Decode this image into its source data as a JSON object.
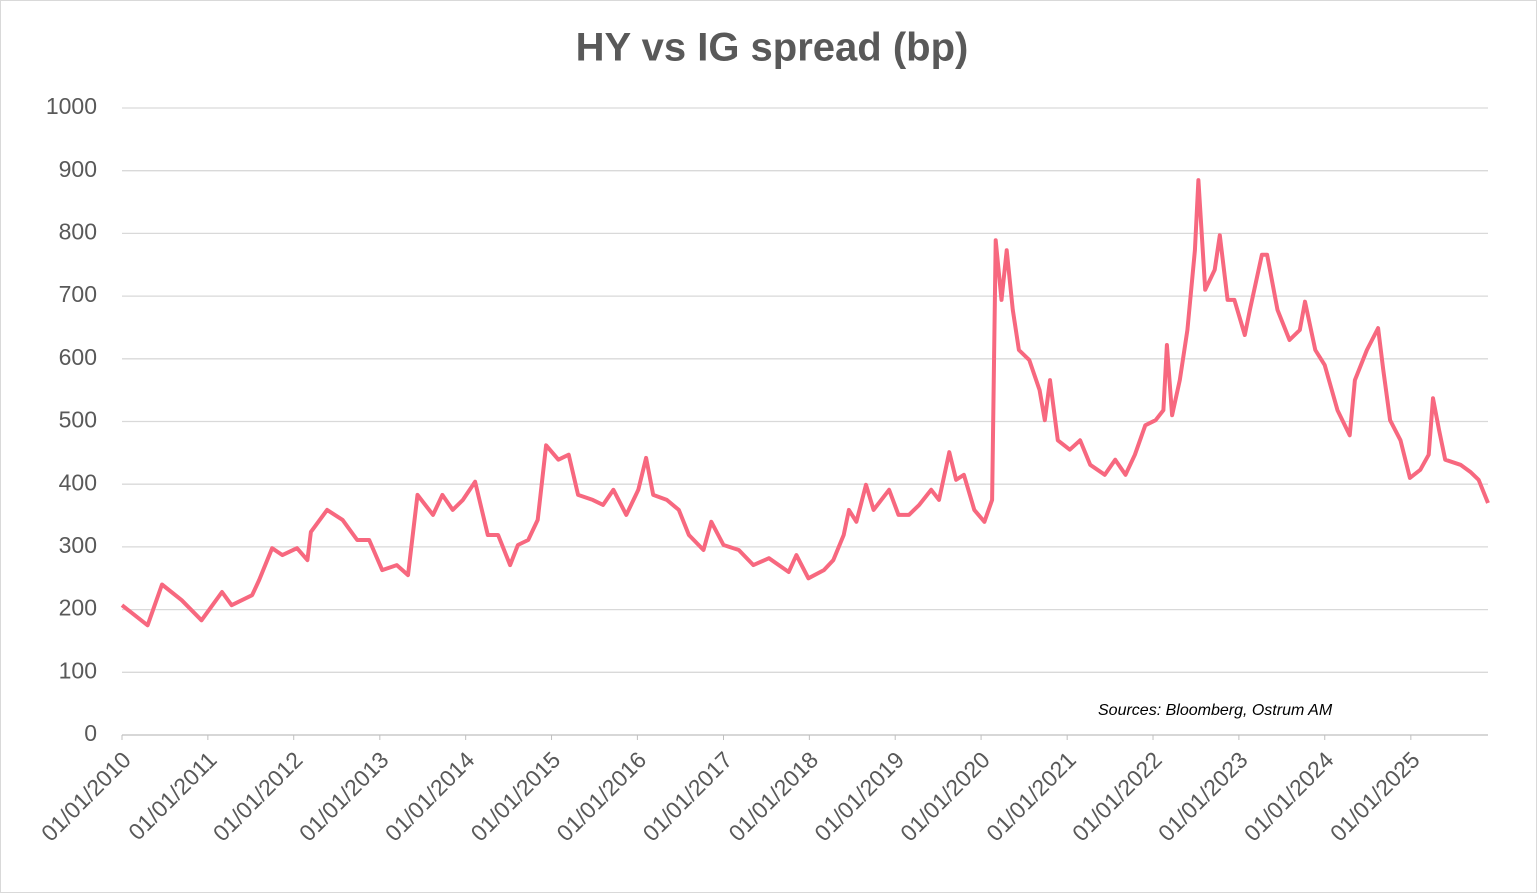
{
  "chart_data": {
    "type": "line",
    "title": "HY vs IG spread (bp)",
    "annotation": "Sources: Bloomberg, Ostrum AM",
    "color": "#f7687f",
    "grid": true,
    "x": [
      "2010-01-01",
      "2010-04-20",
      "2010-06-20",
      "2010-09-12",
      "2010-12-05",
      "2011-03-02",
      "2011-04-12",
      "2011-07-08",
      "2011-08-07",
      "2011-10-01",
      "2011-11-14",
      "2012-01-15",
      "2012-02-28",
      "2012-03-14",
      "2012-05-22",
      "2012-07-27",
      "2012-09-27",
      "2012-11-17",
      "2013-01-11",
      "2013-03-14",
      "2013-05-01",
      "2013-06-10",
      "2013-08-15",
      "2013-09-24",
      "2013-11-07",
      "2013-12-20",
      "2014-02-10",
      "2014-04-05",
      "2014-05-19",
      "2014-07-09",
      "2014-08-11",
      "2014-09-24",
      "2014-11-03",
      "2014-12-09",
      "2015-01-30",
      "2015-03-15",
      "2015-04-24",
      "2015-06-25",
      "2015-08-08",
      "2015-09-21",
      "2015-11-15",
      "2016-01-05",
      "2016-02-07",
      "2016-03-08",
      "2016-05-05",
      "2016-06-25",
      "2016-08-07",
      "2016-10-08",
      "2016-11-10",
      "2017-01-01",
      "2017-03-07",
      "2017-05-08",
      "2017-07-13",
      "2017-10-05",
      "2017-11-07",
      "2017-12-28",
      "2018-03-04",
      "2018-04-13",
      "2018-05-27",
      "2018-06-18",
      "2018-07-20",
      "2018-08-30",
      "2018-10-01",
      "2018-12-06",
      "2019-01-15",
      "2019-02-28",
      "2019-04-13",
      "2019-06-03",
      "2019-07-06",
      "2019-08-19",
      "2019-09-17",
      "2019-10-20",
      "2019-12-03",
      "2020-01-15",
      "2020-02-17",
      "2020-03-03",
      "2020-03-28",
      "2020-04-19",
      "2020-05-15",
      "2020-06-10",
      "2020-07-24",
      "2020-09-06",
      "2020-09-28",
      "2020-10-20",
      "2020-11-22",
      "2021-01-12",
      "2021-02-25",
      "2021-04-09",
      "2021-06-10",
      "2021-07-24",
      "2021-09-06",
      "2021-10-16",
      "2021-11-29",
      "2022-01-12",
      "2022-02-14",
      "2022-03-01",
      "2022-03-23",
      "2022-04-25",
      "2022-05-27",
      "2022-06-28",
      "2022-07-13",
      "2022-08-11",
      "2022-09-20",
      "2022-10-12",
      "2022-11-14",
      "2022-12-13",
      "2023-01-26",
      "2023-02-17",
      "2023-04-09",
      "2023-05-01",
      "2023-06-14",
      "2023-08-04",
      "2023-09-17",
      "2023-10-09",
      "2023-11-22",
      "2024-01-01",
      "2024-02-24",
      "2024-04-16",
      "2024-05-08",
      "2024-06-28",
      "2024-08-15",
      "2024-09-06",
      "2024-10-05",
      "2024-11-18",
      "2024-12-28",
      "2025-02-10",
      "2025-03-18",
      "2025-04-05",
      "2025-05-01",
      "2025-05-27",
      "2025-07-31",
      "2025-09-13",
      "2025-10-16",
      "2025-11-25"
    ],
    "values": [
      207,
      175,
      240,
      215,
      183,
      228,
      207,
      223,
      247,
      298,
      287,
      298,
      279,
      324,
      359,
      343,
      311,
      311,
      263,
      271,
      255,
      383,
      351,
      383,
      359,
      375,
      404,
      319,
      319,
      271,
      303,
      311,
      343,
      462,
      439,
      447,
      383,
      375,
      367,
      391,
      351,
      391,
      442,
      383,
      375,
      359,
      319,
      295,
      340,
      303,
      295,
      271,
      282,
      260,
      287,
      250,
      263,
      279,
      319,
      359,
      340,
      399,
      359,
      391,
      351,
      351,
      367,
      391,
      375,
      451,
      407,
      415,
      359,
      340,
      375,
      789,
      694,
      773,
      678,
      614,
      598,
      550,
      502,
      566,
      470,
      455,
      470,
      431,
      415,
      439,
      415,
      447,
      494,
      502,
      518,
      622,
      510,
      566,
      646,
      773,
      885,
      710,
      742,
      797,
      694,
      694,
      638,
      678,
      766,
      766,
      678,
      630,
      646,
      691,
      614,
      590,
      518,
      478,
      566,
      614,
      649,
      582,
      502,
      470,
      410,
      423,
      447,
      537,
      486,
      439,
      431,
      419,
      407,
      370
    ],
    "xlim": [
      "2010-01-01",
      "2025-11-25"
    ],
    "xticks": [
      {
        "value": "2010-01-01",
        "label": "01/01/2010"
      },
      {
        "value": "2011-01-01",
        "label": "01/01/2011"
      },
      {
        "value": "2012-01-01",
        "label": "01/01/2012"
      },
      {
        "value": "2013-01-01",
        "label": "01/01/2013"
      },
      {
        "value": "2014-01-01",
        "label": "01/01/2014"
      },
      {
        "value": "2015-01-01",
        "label": "01/01/2015"
      },
      {
        "value": "2016-01-01",
        "label": "01/01/2016"
      },
      {
        "value": "2017-01-01",
        "label": "01/01/2017"
      },
      {
        "value": "2018-01-01",
        "label": "01/01/2018"
      },
      {
        "value": "2019-01-01",
        "label": "01/01/2019"
      },
      {
        "value": "2020-01-01",
        "label": "01/01/2020"
      },
      {
        "value": "2021-01-01",
        "label": "01/01/2021"
      },
      {
        "value": "2022-01-01",
        "label": "01/01/2022"
      },
      {
        "value": "2023-01-01",
        "label": "01/01/2023"
      },
      {
        "value": "2024-01-01",
        "label": "01/01/2024"
      },
      {
        "value": "2025-01-01",
        "label": "01/01/2025"
      }
    ],
    "ylim": [
      0,
      1000
    ],
    "yticks": [
      0,
      100,
      200,
      300,
      400,
      500,
      600,
      700,
      800,
      900,
      1000
    ]
  }
}
